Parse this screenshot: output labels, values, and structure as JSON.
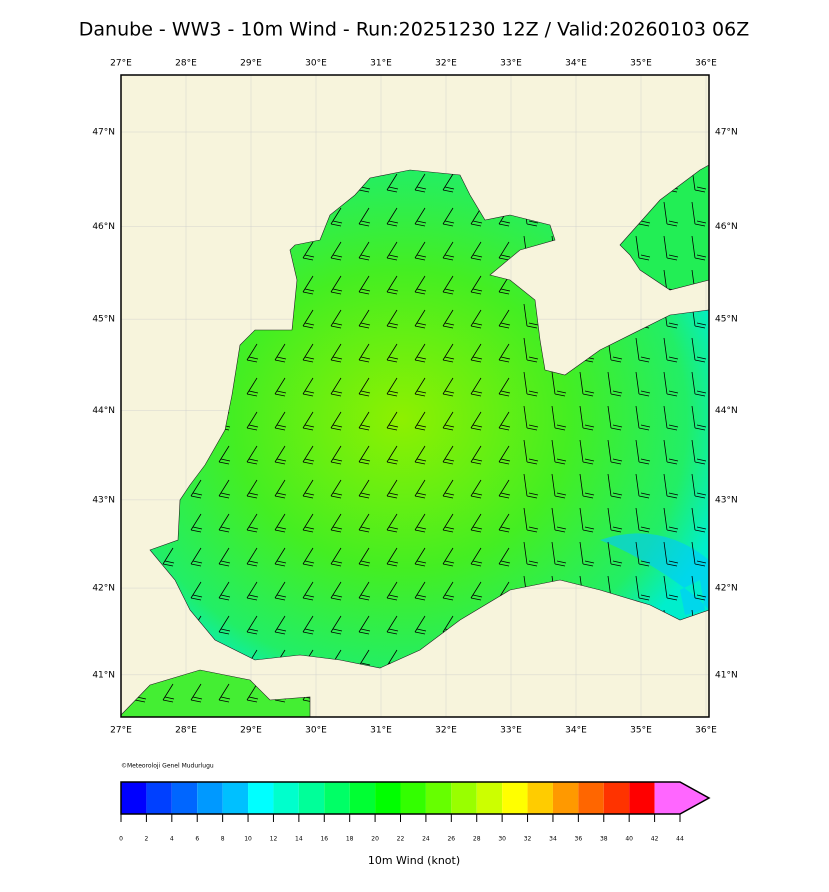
{
  "title": "Danube - WW3 - 10m Wind - Run:20251230 12Z / Valid:20260103 06Z",
  "map": {
    "lon_ticks": [
      {
        "value": 27,
        "label": "27°E"
      },
      {
        "value": 28,
        "label": "28°E"
      },
      {
        "value": 29,
        "label": "29°E"
      },
      {
        "value": 30,
        "label": "30°E"
      },
      {
        "value": 31,
        "label": "31°E"
      },
      {
        "value": 32,
        "label": "32°E"
      },
      {
        "value": 33,
        "label": "33°E"
      },
      {
        "value": 34,
        "label": "34°E"
      },
      {
        "value": 35,
        "label": "35°E"
      },
      {
        "value": 36,
        "label": "36°E"
      }
    ],
    "lat_ticks": [
      {
        "value": 47,
        "label": "47°N"
      },
      {
        "value": 46,
        "label": "46°N"
      },
      {
        "value": 45,
        "label": "45°N"
      },
      {
        "value": 44,
        "label": "44°N"
      },
      {
        "value": 43,
        "label": "43°N"
      },
      {
        "value": 42,
        "label": "42°N"
      },
      {
        "value": 41,
        "label": "41°N"
      }
    ],
    "credit": "©Meteoroloji Genel Mudurlugu"
  },
  "colorbar": {
    "label": "10m Wind (knot)",
    "ticks": [
      0,
      2,
      4,
      6,
      8,
      10,
      12,
      14,
      16,
      18,
      20,
      22,
      24,
      26,
      28,
      30,
      32,
      34,
      36,
      38,
      40,
      42,
      44
    ],
    "colors": [
      "#0000ff",
      "#0040ff",
      "#0066ff",
      "#0099ff",
      "#00c0ff",
      "#00ffff",
      "#00ffcc",
      "#00ff99",
      "#00ff66",
      "#00ff33",
      "#00ff00",
      "#33ff00",
      "#66ff00",
      "#99ff00",
      "#ccff00",
      "#ffff00",
      "#ffcc00",
      "#ff9900",
      "#ff6600",
      "#ff3300",
      "#ff0000",
      "#ff66ff"
    ]
  }
}
